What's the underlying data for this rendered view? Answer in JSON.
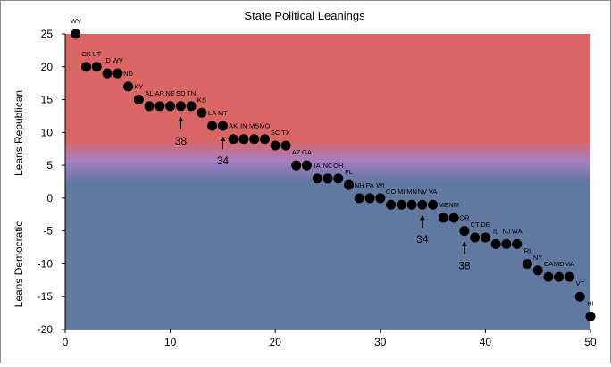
{
  "chart_data": {
    "type": "scatter",
    "title": "State Political Leanings",
    "ylabel_top": "Leans Republican",
    "ylabel_bottom": "Leans Democratic",
    "xlim": [
      0,
      50
    ],
    "ylim": [
      -20,
      25
    ],
    "xticks": [
      0,
      10,
      20,
      30,
      40,
      50
    ],
    "yticks": [
      -20,
      -15,
      -10,
      -5,
      0,
      5,
      10,
      15,
      20,
      25
    ],
    "grid": false,
    "legend": "none",
    "colors": {
      "republican": "#d96565",
      "democratic": "#6178a0",
      "middle": "#a77ec4",
      "marker": "#000000"
    },
    "points": [
      {
        "x": 1,
        "y": 25,
        "label": "WY"
      },
      {
        "x": 2,
        "y": 20,
        "label": "OK"
      },
      {
        "x": 3,
        "y": 20,
        "label": "UT"
      },
      {
        "x": 4,
        "y": 19,
        "label": "ID"
      },
      {
        "x": 5,
        "y": 19,
        "label": "WV"
      },
      {
        "x": 6,
        "y": 17,
        "label": "ND"
      },
      {
        "x": 7,
        "y": 15,
        "label": "KY"
      },
      {
        "x": 8,
        "y": 14,
        "label": "AL"
      },
      {
        "x": 9,
        "y": 14,
        "label": "AR"
      },
      {
        "x": 10,
        "y": 14,
        "label": "NE"
      },
      {
        "x": 11,
        "y": 14,
        "label": "SD"
      },
      {
        "x": 12,
        "y": 14,
        "label": "TN"
      },
      {
        "x": 13,
        "y": 13,
        "label": "KS"
      },
      {
        "x": 14,
        "y": 11,
        "label": "LA"
      },
      {
        "x": 15,
        "y": 11,
        "label": "MT"
      },
      {
        "x": 16,
        "y": 9,
        "label": "AK"
      },
      {
        "x": 17,
        "y": 9,
        "label": "IN"
      },
      {
        "x": 18,
        "y": 9,
        "label": "MS"
      },
      {
        "x": 19,
        "y": 9,
        "label": "MO"
      },
      {
        "x": 20,
        "y": 8,
        "label": "SC"
      },
      {
        "x": 21,
        "y": 8,
        "label": "TX"
      },
      {
        "x": 22,
        "y": 5,
        "label": "AZ"
      },
      {
        "x": 23,
        "y": 5,
        "label": "GA"
      },
      {
        "x": 24,
        "y": 3,
        "label": "IA"
      },
      {
        "x": 25,
        "y": 3,
        "label": "NC"
      },
      {
        "x": 26,
        "y": 3,
        "label": "OH"
      },
      {
        "x": 27,
        "y": 2,
        "label": "FL"
      },
      {
        "x": 28,
        "y": 0,
        "label": "NH"
      },
      {
        "x": 29,
        "y": 0,
        "label": "PA"
      },
      {
        "x": 30,
        "y": 0,
        "label": "WI"
      },
      {
        "x": 31,
        "y": -1,
        "label": "CO"
      },
      {
        "x": 32,
        "y": -1,
        "label": "MI"
      },
      {
        "x": 33,
        "y": -1,
        "label": "MN"
      },
      {
        "x": 34,
        "y": -1,
        "label": "NV"
      },
      {
        "x": 35,
        "y": -1,
        "label": "VA"
      },
      {
        "x": 36,
        "y": -3,
        "label": "ME"
      },
      {
        "x": 37,
        "y": -3,
        "label": "NM"
      },
      {
        "x": 38,
        "y": -5,
        "label": "OR"
      },
      {
        "x": 39,
        "y": -6,
        "label": "CT"
      },
      {
        "x": 40,
        "y": -6,
        "label": "DE"
      },
      {
        "x": 41,
        "y": -7,
        "label": "IL"
      },
      {
        "x": 42,
        "y": -7,
        "label": "NJ"
      },
      {
        "x": 43,
        "y": -7,
        "label": "WA"
      },
      {
        "x": 44,
        "y": -10,
        "label": "RI"
      },
      {
        "x": 45,
        "y": -11,
        "label": "NY"
      },
      {
        "x": 46,
        "y": -12,
        "label": "CA"
      },
      {
        "x": 47,
        "y": -12,
        "label": "MD"
      },
      {
        "x": 48,
        "y": -12,
        "label": "MA"
      },
      {
        "x": 49,
        "y": -15,
        "label": "VT"
      },
      {
        "x": 50,
        "y": -18,
        "label": "HI"
      }
    ],
    "annotations": [
      {
        "text": "38",
        "x": 11
      },
      {
        "text": "34",
        "x": 15
      },
      {
        "text": "34",
        "x": 34
      },
      {
        "text": "38",
        "x": 38
      }
    ]
  }
}
